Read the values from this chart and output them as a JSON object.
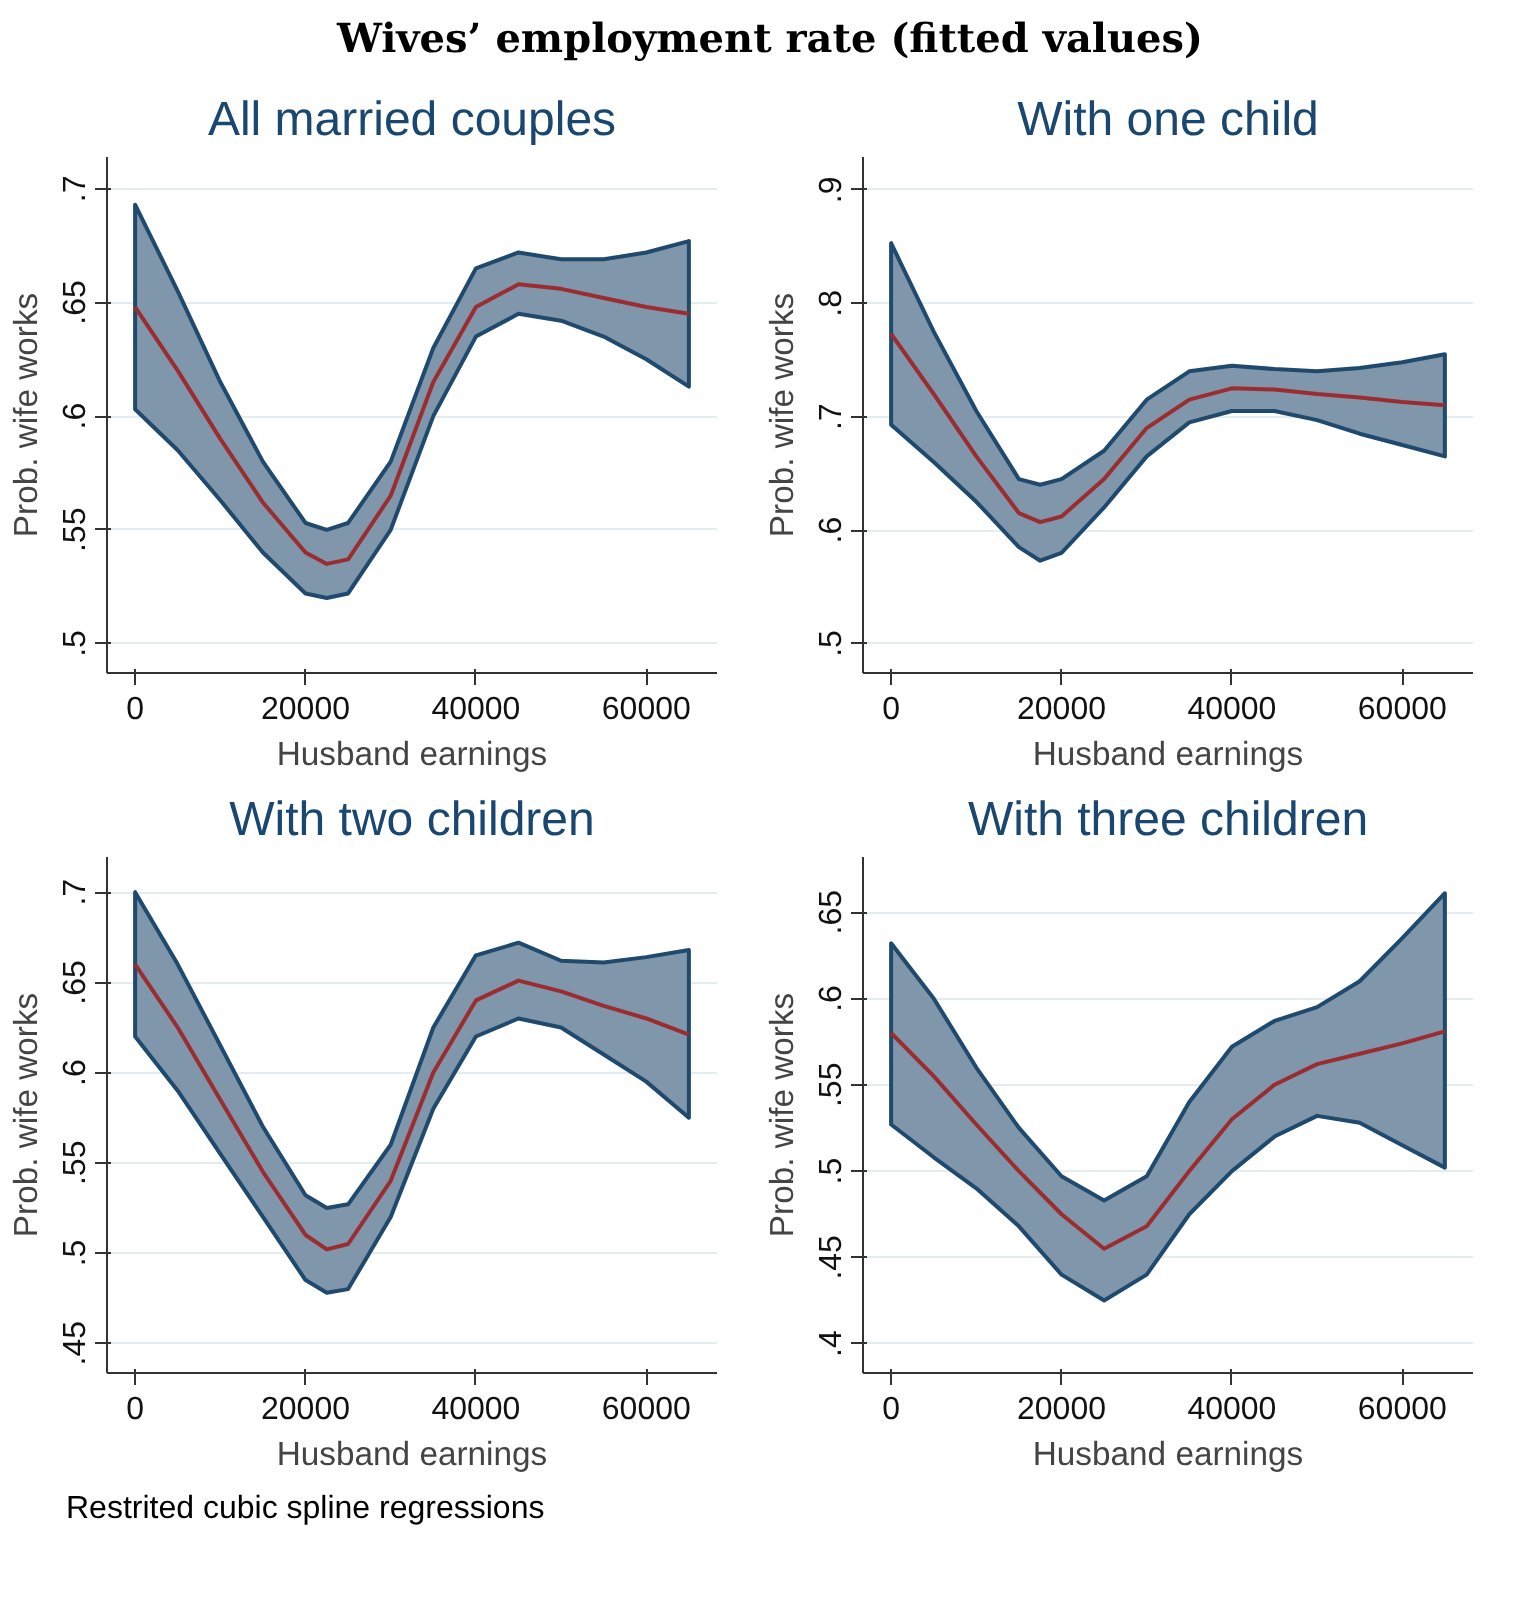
{
  "chart_data": [
    {
      "type": "line",
      "title": "All married couples",
      "xlabel": "Husband earnings",
      "ylabel": "Prob. wife works",
      "annotations": [
        "Wives’ employment rate (fitted values)"
      ],
      "grid": "y",
      "xlim": [
        -3300,
        68300
      ],
      "ylim": [
        0.487,
        0.714
      ],
      "xticks": [
        0,
        20000,
        40000,
        60000
      ],
      "yticks": [
        {
          "value": 0.5,
          "label": ".5"
        },
        {
          "value": 0.55,
          "label": ".55"
        },
        {
          "value": 0.6,
          "label": ".6"
        },
        {
          "value": 0.65,
          "label": ".65"
        },
        {
          "value": 0.7,
          "label": ".7"
        }
      ],
      "x": [
        0,
        5000,
        10000,
        15000,
        20000,
        22500,
        25000,
        30000,
        35000,
        40000,
        45000,
        50000,
        55000,
        60000,
        65000
      ],
      "series": [
        {
          "color": "#9b2d30",
          "values": [
            0.648,
            0.62,
            0.59,
            0.562,
            0.54,
            0.535,
            0.537,
            0.565,
            0.615,
            0.648,
            0.658,
            0.656,
            0.652,
            0.648,
            0.645
          ],
          "lower": [
            0.603,
            0.585,
            0.563,
            0.54,
            0.522,
            0.52,
            0.522,
            0.55,
            0.6,
            0.635,
            0.645,
            0.642,
            0.635,
            0.625,
            0.613
          ],
          "upper": [
            0.693,
            0.655,
            0.615,
            0.58,
            0.553,
            0.55,
            0.553,
            0.58,
            0.63,
            0.665,
            0.672,
            0.669,
            0.669,
            0.672,
            0.677
          ]
        }
      ]
    },
    {
      "type": "line",
      "title": "With one child",
      "xlabel": "Husband earnings",
      "ylabel": "Prob. wife works",
      "grid": "y",
      "xlim": [
        -3300,
        68300
      ],
      "ylim": [
        0.474,
        0.929
      ],
      "xticks": [
        0,
        20000,
        40000,
        60000
      ],
      "yticks": [
        {
          "value": 0.5,
          "label": ".5"
        },
        {
          "value": 0.6,
          "label": ".6"
        },
        {
          "value": 0.7,
          "label": ".7"
        },
        {
          "value": 0.8,
          "label": ".8"
        },
        {
          "value": 0.9,
          "label": ".9"
        }
      ],
      "x": [
        0,
        5000,
        10000,
        15000,
        17500,
        20000,
        25000,
        30000,
        35000,
        40000,
        45000,
        50000,
        55000,
        60000,
        65000
      ],
      "series": [
        {
          "color": "#9b2d30",
          "values": [
            0.773,
            0.72,
            0.665,
            0.615,
            0.607,
            0.612,
            0.645,
            0.69,
            0.715,
            0.725,
            0.724,
            0.72,
            0.717,
            0.713,
            0.71
          ],
          "lower": [
            0.693,
            0.66,
            0.625,
            0.585,
            0.573,
            0.58,
            0.62,
            0.665,
            0.695,
            0.705,
            0.705,
            0.697,
            0.685,
            0.675,
            0.665
          ],
          "upper": [
            0.853,
            0.775,
            0.705,
            0.645,
            0.64,
            0.645,
            0.67,
            0.715,
            0.74,
            0.745,
            0.742,
            0.74,
            0.743,
            0.748,
            0.755
          ]
        }
      ]
    },
    {
      "type": "line",
      "title": "With two children",
      "xlabel": "Husband earnings",
      "ylabel": "Prob. wife works",
      "grid": "y",
      "xlim": [
        -3300,
        68300
      ],
      "ylim": [
        0.4335,
        0.7195
      ],
      "xticks": [
        0,
        20000,
        40000,
        60000
      ],
      "yticks": [
        {
          "value": 0.45,
          "label": ".45"
        },
        {
          "value": 0.5,
          "label": ".5"
        },
        {
          "value": 0.55,
          "label": ".55"
        },
        {
          "value": 0.6,
          "label": ".6"
        },
        {
          "value": 0.65,
          "label": ".65"
        },
        {
          "value": 0.7,
          "label": ".7"
        }
      ],
      "x": [
        0,
        5000,
        10000,
        15000,
        20000,
        22500,
        25000,
        30000,
        35000,
        40000,
        45000,
        50000,
        55000,
        60000,
        65000
      ],
      "series": [
        {
          "color": "#9b2d30",
          "values": [
            0.66,
            0.625,
            0.585,
            0.545,
            0.51,
            0.502,
            0.505,
            0.54,
            0.6,
            0.64,
            0.651,
            0.645,
            0.637,
            0.63,
            0.621
          ],
          "lower": [
            0.62,
            0.59,
            0.555,
            0.52,
            0.485,
            0.478,
            0.48,
            0.52,
            0.58,
            0.62,
            0.63,
            0.625,
            0.61,
            0.595,
            0.575
          ],
          "upper": [
            0.7,
            0.66,
            0.615,
            0.57,
            0.532,
            0.525,
            0.527,
            0.56,
            0.625,
            0.665,
            0.672,
            0.662,
            0.661,
            0.664,
            0.668
          ]
        }
      ]
    },
    {
      "type": "line",
      "title": "With three children",
      "xlabel": "Husband earnings",
      "ylabel": "Prob. wife works",
      "annotations": [
        "Restrited cubic spline regressions"
      ],
      "grid": "y",
      "xlim": [
        -3300,
        68300
      ],
      "ylim": [
        0.383,
        0.682
      ],
      "xticks": [
        0,
        20000,
        40000,
        60000
      ],
      "yticks": [
        {
          "value": 0.4,
          "label": ".4"
        },
        {
          "value": 0.45,
          "label": ".45"
        },
        {
          "value": 0.5,
          "label": ".5"
        },
        {
          "value": 0.55,
          "label": ".55"
        },
        {
          "value": 0.6,
          "label": ".6"
        },
        {
          "value": 0.65,
          "label": ".65"
        }
      ],
      "x": [
        0,
        5000,
        10000,
        15000,
        20000,
        25000,
        30000,
        35000,
        40000,
        45000,
        50000,
        55000,
        60000,
        65000
      ],
      "series": [
        {
          "color": "#9b2d30",
          "values": [
            0.58,
            0.555,
            0.527,
            0.5,
            0.475,
            0.455,
            0.468,
            0.5,
            0.53,
            0.55,
            0.562,
            0.568,
            0.574,
            0.581
          ],
          "lower": [
            0.527,
            0.508,
            0.49,
            0.468,
            0.44,
            0.425,
            0.44,
            0.475,
            0.5,
            0.52,
            0.532,
            0.528,
            0.515,
            0.502
          ],
          "upper": [
            0.632,
            0.6,
            0.56,
            0.525,
            0.497,
            0.483,
            0.497,
            0.54,
            0.572,
            0.587,
            0.595,
            0.61,
            0.635,
            0.661
          ]
        }
      ]
    }
  ]
}
